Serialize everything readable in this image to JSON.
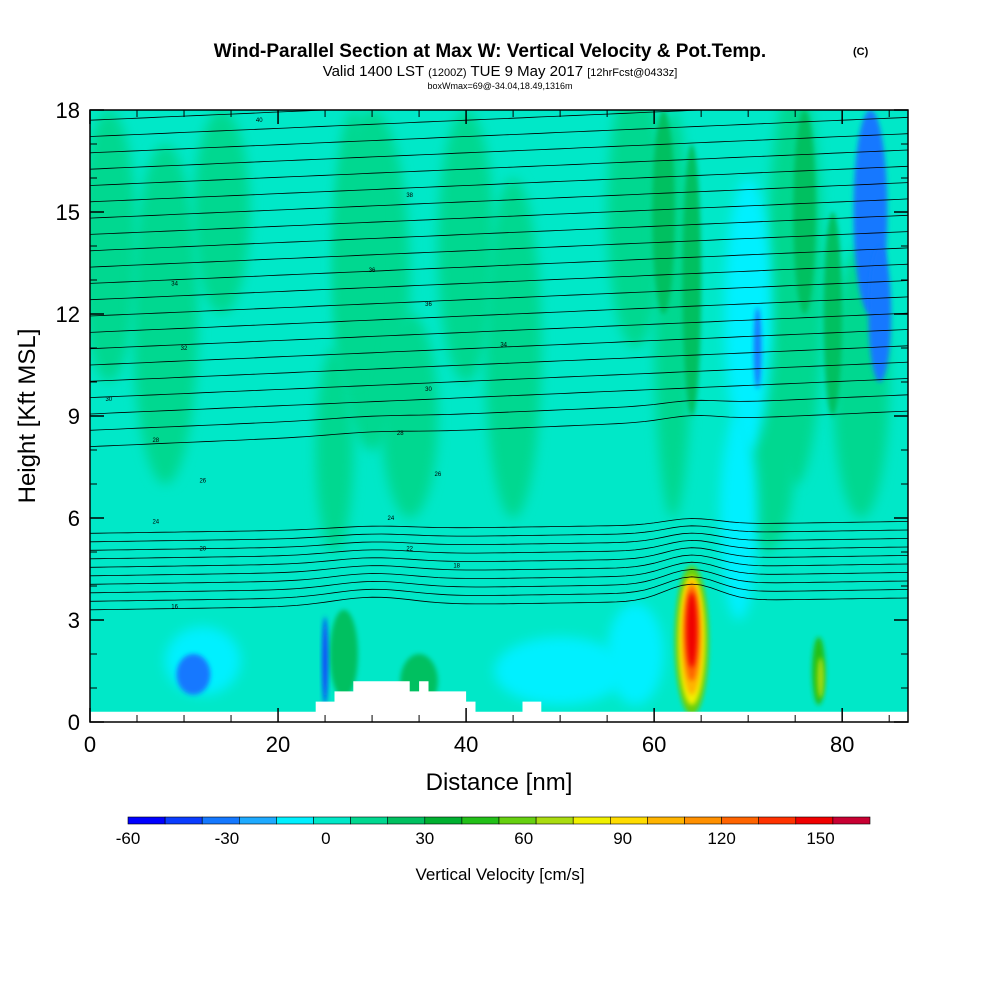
{
  "chart_data": {
    "type": "heatmap",
    "title": "Wind-Parallel Section at Max W: Vertical Velocity & Pot.Temp.",
    "title_units": "(C)",
    "subtitle_main": "Valid 1400 LST",
    "subtitle_utc": "(1200Z)",
    "subtitle_date": "TUE 9 May 2017",
    "subtitle_fcst": "[12hrFcst@0433z]",
    "subtitle_box": "boxWmax=69@-34.04,18.49,1316m",
    "xlabel": "Distance [nm]",
    "ylabel": "Height [Kft MSL]",
    "xlim": [
      0,
      87
    ],
    "ylim": [
      0,
      18
    ],
    "x_ticks": [
      0,
      20,
      40,
      60,
      80
    ],
    "y_ticks": [
      0,
      3,
      6,
      9,
      12,
      15,
      18
    ],
    "colorbar": {
      "label": "Vertical Velocity [cm/s]",
      "tick_values": [
        -60,
        -30,
        0,
        30,
        60,
        90,
        120,
        150
      ],
      "range": [
        -60,
        165
      ],
      "colors": [
        "#0000ff",
        "#0a3cff",
        "#1478ff",
        "#1eaaff",
        "#00f0ff",
        "#00e8c8",
        "#00d890",
        "#00c060",
        "#00b030",
        "#22c018",
        "#66d010",
        "#aadc10",
        "#f0f000",
        "#ffdc00",
        "#ffb400",
        "#ff9000",
        "#ff6400",
        "#ff3200",
        "#f00000",
        "#c80032"
      ]
    },
    "terrain_kft": [
      0,
      0,
      0,
      0,
      0,
      0,
      0,
      0,
      0,
      0,
      0,
      0,
      0,
      0,
      0,
      0,
      0,
      0,
      0,
      0,
      0,
      0,
      0,
      0,
      0.3,
      0.3,
      0.6,
      0.6,
      0.9,
      0.9,
      0.9,
      0.9,
      0.9,
      0.9,
      0.6,
      0.9,
      0.6,
      0.6,
      0.6,
      0.6,
      0.3,
      0,
      0,
      0,
      0,
      0,
      0.3,
      0.3,
      0,
      0,
      0,
      0,
      0,
      0,
      0,
      0,
      0,
      0,
      0,
      0,
      0,
      0,
      0,
      0,
      0,
      0,
      0,
      0,
      0,
      0,
      0,
      0,
      0,
      0,
      0,
      0,
      0,
      0,
      0,
      0,
      0,
      0,
      0,
      0,
      0,
      0,
      0,
      0
    ],
    "theta_labels": [
      "40",
      "38",
      "36",
      "36",
      "34",
      "34",
      "32",
      "30",
      "30",
      "28",
      "28",
      "26",
      "26",
      "24",
      "24",
      "22",
      "20",
      "18",
      "16"
    ]
  }
}
